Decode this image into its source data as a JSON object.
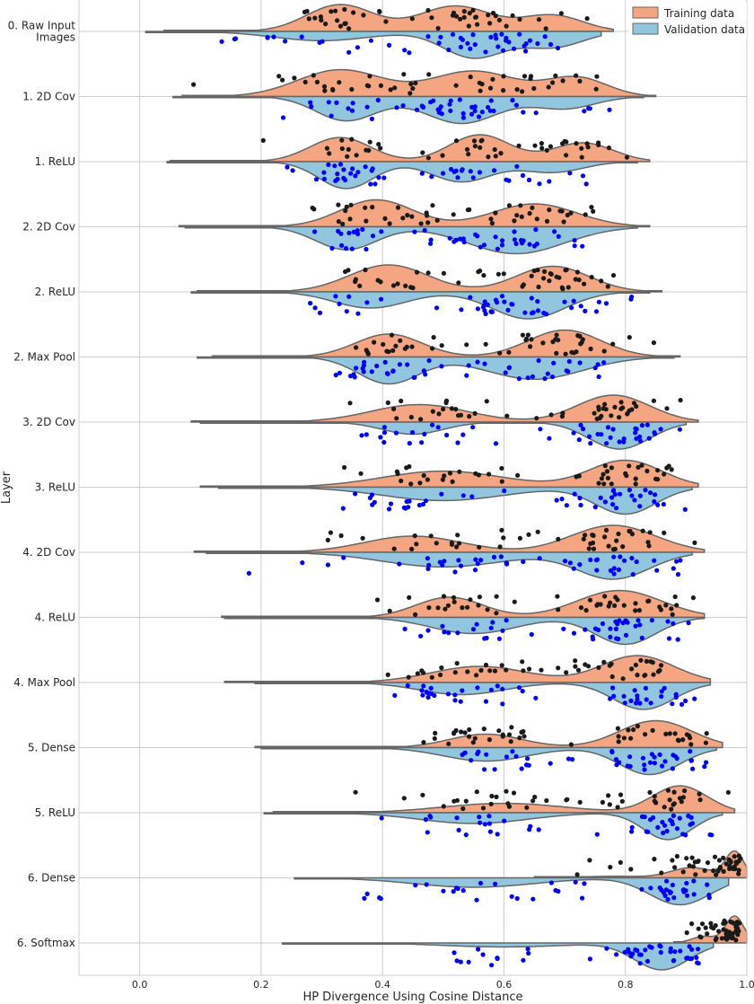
{
  "chart_data": {
    "type": "violin",
    "title": "",
    "xlabel": "HP Divergence Using Cosine Distance",
    "ylabel": "Layer",
    "xlim": [
      -0.1,
      1.0
    ],
    "xticks": [
      "0.0",
      "0.2",
      "0.4",
      "0.6",
      "0.8",
      "1.0"
    ],
    "grid": true,
    "legend_position": "top-right",
    "colors": {
      "training_fill": "#f4a582",
      "validation_fill": "#92c5de",
      "training_points": "#1a1a1a",
      "validation_points": "#0000ff",
      "outline": "#666666"
    },
    "series": [
      {
        "name": "Training data"
      },
      {
        "name": "Validation data"
      }
    ],
    "layers": [
      {
        "label": "0. Raw Input\nImages",
        "train": {
          "range": [
            0.04,
            0.78
          ],
          "modes": [
            [
              0.33,
              0.055,
              1.0
            ],
            [
              0.52,
              0.06,
              0.95
            ],
            [
              0.68,
              0.05,
              0.6
            ]
          ]
        },
        "val": {
          "range": [
            0.01,
            0.76
          ],
          "modes": [
            [
              0.3,
              0.08,
              0.35
            ],
            [
              0.55,
              0.05,
              1.0
            ],
            [
              0.68,
              0.05,
              0.6
            ]
          ]
        }
      },
      {
        "label": "1. 2D Cov",
        "train": {
          "range": [
            0.07,
            0.85
          ],
          "modes": [
            [
              0.33,
              0.07,
              1.0
            ],
            [
              0.55,
              0.07,
              0.95
            ],
            [
              0.72,
              0.05,
              0.7
            ]
          ]
        },
        "val": {
          "range": [
            0.055,
            0.83
          ],
          "modes": [
            [
              0.34,
              0.05,
              0.9
            ],
            [
              0.53,
              0.06,
              1.0
            ],
            [
              0.7,
              0.05,
              0.45
            ]
          ]
        }
      },
      {
        "label": "1. ReLU",
        "train": {
          "range": [
            0.05,
            0.84
          ],
          "modes": [
            [
              0.33,
              0.05,
              0.9
            ],
            [
              0.56,
              0.05,
              1.0
            ],
            [
              0.73,
              0.05,
              0.7
            ]
          ]
        },
        "val": {
          "range": [
            0.045,
            0.82
          ],
          "modes": [
            [
              0.34,
              0.045,
              1.0
            ],
            [
              0.53,
              0.05,
              0.75
            ],
            [
              0.68,
              0.05,
              0.4
            ]
          ]
        }
      },
      {
        "label": "2. 2D Cov",
        "train": {
          "range": [
            0.065,
            0.84
          ],
          "modes": [
            [
              0.39,
              0.06,
              1.0
            ],
            [
              0.65,
              0.07,
              0.85
            ]
          ]
        },
        "val": {
          "range": [
            0.075,
            0.82
          ],
          "modes": [
            [
              0.34,
              0.05,
              0.85
            ],
            [
              0.62,
              0.08,
              1.0
            ]
          ]
        }
      },
      {
        "label": "2. ReLU",
        "train": {
          "range": [
            0.095,
            0.86
          ],
          "modes": [
            [
              0.41,
              0.065,
              1.0
            ],
            [
              0.68,
              0.06,
              0.95
            ]
          ]
        },
        "val": {
          "range": [
            0.085,
            0.84
          ],
          "modes": [
            [
              0.38,
              0.06,
              0.6
            ],
            [
              0.64,
              0.06,
              1.0
            ]
          ]
        }
      },
      {
        "label": "2. Max Pool",
        "train": {
          "range": [
            0.12,
            0.89
          ],
          "modes": [
            [
              0.41,
              0.055,
              0.85
            ],
            [
              0.7,
              0.06,
              1.0
            ]
          ]
        },
        "val": {
          "range": [
            0.095,
            0.88
          ],
          "modes": [
            [
              0.41,
              0.05,
              0.9
            ],
            [
              0.65,
              0.08,
              0.75
            ]
          ]
        }
      },
      {
        "label": "3. 2D Cov",
        "train": {
          "range": [
            0.085,
            0.92
          ],
          "modes": [
            [
              0.46,
              0.08,
              0.65
            ],
            [
              0.78,
              0.06,
              1.0
            ]
          ]
        },
        "val": {
          "range": [
            0.1,
            0.9
          ],
          "modes": [
            [
              0.45,
              0.05,
              0.45
            ],
            [
              0.79,
              0.05,
              1.0
            ]
          ]
        }
      },
      {
        "label": "3. ReLU",
        "train": {
          "range": [
            0.1,
            0.92
          ],
          "modes": [
            [
              0.5,
              0.1,
              0.6
            ],
            [
              0.8,
              0.06,
              1.0
            ]
          ]
        },
        "val": {
          "range": [
            0.13,
            0.91
          ],
          "modes": [
            [
              0.5,
              0.1,
              0.5
            ],
            [
              0.8,
              0.05,
              1.0
            ]
          ]
        }
      },
      {
        "label": "4. 2D Cov",
        "train": {
          "range": [
            0.09,
            0.93
          ],
          "modes": [
            [
              0.45,
              0.08,
              0.6
            ],
            [
              0.78,
              0.07,
              1.0
            ]
          ]
        },
        "val": {
          "range": [
            0.11,
            0.91
          ],
          "modes": [
            [
              0.5,
              0.1,
              0.55
            ],
            [
              0.78,
              0.06,
              1.0
            ]
          ]
        }
      },
      {
        "label": "4. ReLU",
        "train": {
          "range": [
            0.135,
            0.93
          ],
          "modes": [
            [
              0.51,
              0.055,
              0.75
            ],
            [
              0.79,
              0.07,
              1.0
            ]
          ]
        },
        "val": {
          "range": [
            0.14,
            0.93
          ],
          "modes": [
            [
              0.55,
              0.07,
              0.6
            ],
            [
              0.8,
              0.05,
              1.0
            ]
          ]
        }
      },
      {
        "label": "4. Max Pool",
        "train": {
          "range": [
            0.14,
            0.94
          ],
          "modes": [
            [
              0.56,
              0.08,
              0.6
            ],
            [
              0.82,
              0.06,
              1.0
            ]
          ]
        },
        "val": {
          "range": [
            0.19,
            0.94
          ],
          "modes": [
            [
              0.53,
              0.07,
              0.45
            ],
            [
              0.83,
              0.05,
              1.0
            ]
          ]
        }
      },
      {
        "label": "5. Dense",
        "train": {
          "range": [
            0.19,
            0.96
          ],
          "modes": [
            [
              0.57,
              0.06,
              0.5
            ],
            [
              0.85,
              0.06,
              1.0
            ]
          ]
        },
        "val": {
          "range": [
            0.2,
            0.95
          ],
          "modes": [
            [
              0.57,
              0.07,
              0.5
            ],
            [
              0.84,
              0.05,
              1.0
            ]
          ]
        }
      },
      {
        "label": "5. ReLU",
        "train": {
          "range": [
            0.22,
            0.98
          ],
          "modes": [
            [
              0.6,
              0.1,
              0.35
            ],
            [
              0.89,
              0.045,
              1.0
            ]
          ]
        },
        "val": {
          "range": [
            0.205,
            0.96
          ],
          "modes": [
            [
              0.55,
              0.09,
              0.4
            ],
            [
              0.87,
              0.04,
              1.0
            ]
          ]
        }
      },
      {
        "label": "6. Dense",
        "train": {
          "range": [
            0.65,
            1.0
          ],
          "modes": [
            [
              0.78,
              0.05,
              0.06
            ],
            [
              0.91,
              0.035,
              0.4
            ],
            [
              0.98,
              0.015,
              1.0
            ]
          ]
        },
        "val": {
          "range": [
            0.255,
            0.97
          ],
          "modes": [
            [
              0.55,
              0.1,
              0.35
            ],
            [
              0.89,
              0.05,
              1.0
            ]
          ]
        }
      },
      {
        "label": "6. Softmax",
        "train": {
          "range": [
            0.88,
            1.0
          ],
          "modes": [
            [
              0.93,
              0.02,
              0.25
            ],
            [
              0.98,
              0.015,
              1.0
            ]
          ]
        },
        "val": {
          "range": [
            0.235,
            0.945
          ],
          "modes": [
            [
              0.6,
              0.1,
              0.15
            ],
            [
              0.86,
              0.045,
              1.0
            ]
          ]
        }
      }
    ]
  }
}
